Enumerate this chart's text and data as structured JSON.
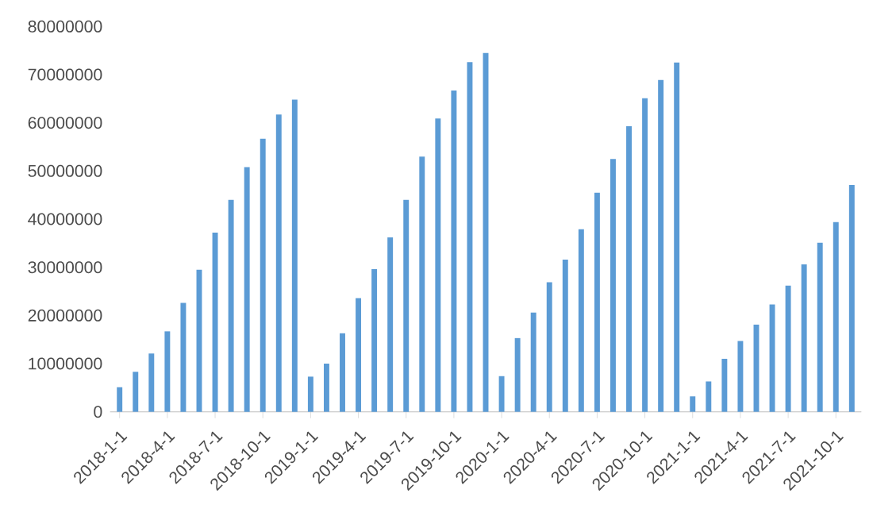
{
  "chart_data": {
    "type": "bar",
    "categories": [
      "2018-1-1",
      null,
      null,
      "2018-4-1",
      null,
      null,
      "2018-7-1",
      null,
      null,
      "2018-10-1",
      null,
      null,
      "2019-1-1",
      null,
      null,
      "2019-4-1",
      null,
      null,
      "2019-7-1",
      null,
      null,
      "2019-10-1",
      null,
      null,
      "2020-1-1",
      null,
      null,
      "2020-4-1",
      null,
      null,
      "2020-7-1",
      null,
      null,
      "2020-10-1",
      null,
      null,
      "2021-1-1",
      null,
      null,
      "2021-4-1",
      null,
      null,
      "2021-7-1",
      null,
      null,
      "2021-10-1",
      null
    ],
    "values": [
      5100000,
      8300000,
      12100000,
      16700000,
      22600000,
      29500000,
      37200000,
      44000000,
      50800000,
      56700000,
      61700000,
      64800000,
      7300000,
      10000000,
      16300000,
      23600000,
      29600000,
      36200000,
      44000000,
      53000000,
      60900000,
      66700000,
      72600000,
      74500000,
      7400000,
      15300000,
      20600000,
      26900000,
      31600000,
      37900000,
      45500000,
      52500000,
      59300000,
      65100000,
      68900000,
      72500000,
      3200000,
      6300000,
      11000000,
      14700000,
      18100000,
      22300000,
      26200000,
      30600000,
      35100000,
      39400000,
      47100000
    ],
    "color": "#5b9bd5",
    "ylim": [
      0,
      80000000
    ],
    "yticks": [
      0,
      10000000,
      20000000,
      30000000,
      40000000,
      50000000,
      60000000,
      70000000,
      80000000
    ]
  }
}
